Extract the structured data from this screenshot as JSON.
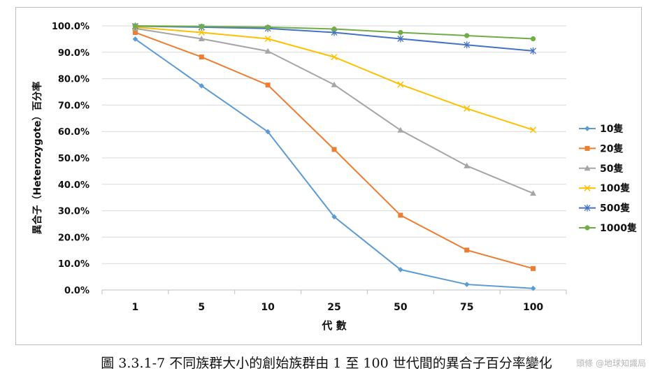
{
  "chart_data": {
    "type": "line",
    "categories": [
      "1",
      "5",
      "10",
      "25",
      "50",
      "75",
      "100"
    ],
    "xlabel": "代  數",
    "ylabel": "異合子（Heterozygote）百分率",
    "ylim": [
      0,
      100
    ],
    "y_ticks": [
      "0.0%",
      "10.0%",
      "20.0%",
      "30.0%",
      "40.0%",
      "50.0%",
      "60.0%",
      "70.0%",
      "80.0%",
      "90.0%",
      "100.0%"
    ],
    "grid": true,
    "legend_position": "right",
    "series": [
      {
        "name": "10隻",
        "color": "#5b9bd5",
        "marker": "diamond",
        "values": [
          95.0,
          77.3,
          59.9,
          27.7,
          7.7,
          2.1,
          0.6
        ]
      },
      {
        "name": "20隻",
        "color": "#ed7d31",
        "marker": "square",
        "values": [
          97.5,
          88.2,
          77.6,
          53.2,
          28.3,
          15.1,
          8.1
        ]
      },
      {
        "name": "50隻",
        "color": "#a5a5a5",
        "marker": "triangle",
        "values": [
          99.0,
          95.1,
          90.4,
          77.7,
          60.5,
          47.0,
          36.6
        ]
      },
      {
        "name": "100隻",
        "color": "#ffc000",
        "marker": "x",
        "values": [
          99.5,
          97.5,
          95.1,
          88.2,
          77.8,
          68.7,
          60.6
        ]
      },
      {
        "name": "500隻",
        "color": "#4472c4",
        "marker": "star",
        "values": [
          99.9,
          99.5,
          99.0,
          97.5,
          95.1,
          92.8,
          90.5
        ]
      },
      {
        "name": "1000隻",
        "color": "#70ad47",
        "marker": "circle",
        "values": [
          100.0,
          99.8,
          99.5,
          98.8,
          97.5,
          96.3,
          95.1
        ]
      }
    ]
  },
  "caption": "圖 3.3.1-7  不同族群大小的創始族群由 1 至 100 世代間的異合子百分率變化",
  "watermark": "頭條 @地球知識局"
}
